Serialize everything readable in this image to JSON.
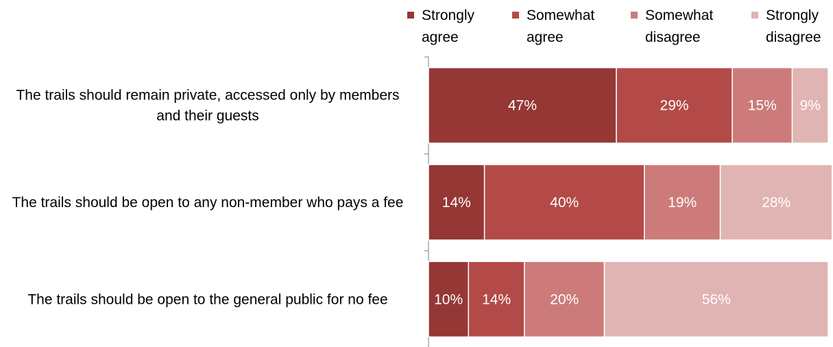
{
  "chart_data": {
    "type": "bar",
    "orientation": "horizontal",
    "stacked": true,
    "percent_stacked": true,
    "categories": [
      "The trails should remain private, accessed only by members and their guests",
      "The trails should be open to any non-member who pays a fee",
      "The trails should be open to the general public for no fee"
    ],
    "series": [
      {
        "name": "Strongly agree",
        "color": "#953735",
        "values": [
          47,
          14,
          10
        ],
        "labels": [
          "47%",
          "14%",
          "10%"
        ]
      },
      {
        "name": "Somewhat agree",
        "color": "#b34a47",
        "values": [
          29,
          40,
          14
        ],
        "labels": [
          "29%",
          "40%",
          "14%"
        ]
      },
      {
        "name": "Somewhat disagree",
        "color": "#cc7b7a",
        "values": [
          15,
          19,
          20
        ],
        "labels": [
          "15%",
          "19%",
          "20%"
        ]
      },
      {
        "name": "Strongly disagree",
        "color": "#e0b4b3",
        "values": [
          9,
          28,
          56
        ],
        "labels": [
          "9%",
          "28%",
          "56%"
        ]
      }
    ],
    "xlim": [
      0,
      100
    ],
    "grid": false,
    "legend_position": "top"
  }
}
